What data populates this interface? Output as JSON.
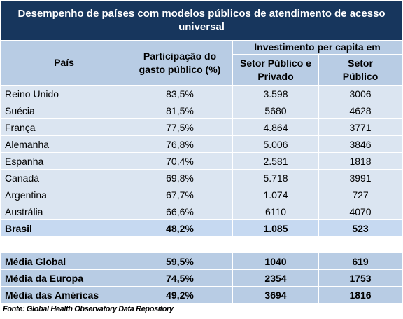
{
  "title": "Desempenho de países com modelos públicos de atendimento de acesso\nuniversal",
  "headers": {
    "pais": "País",
    "participacao": "Participação do\ngasto público (%)",
    "investimento": "Investimento per capita em",
    "setor_publico_privado": "Setor Público e\nPrivado",
    "setor_publico": "Setor\nPúblico"
  },
  "rows": [
    {
      "pais": "Reino Unido",
      "participacao": "83,5%",
      "publico_privado": "3.598",
      "publico": "3006"
    },
    {
      "pais": "Suécia",
      "participacao": "81,5%",
      "publico_privado": "5680",
      "publico": "4628"
    },
    {
      "pais": "França",
      "participacao": "77,5%",
      "publico_privado": "4.864",
      "publico": "3771"
    },
    {
      "pais": "Alemanha",
      "participacao": "76,8%",
      "publico_privado": "5.006",
      "publico": "3846"
    },
    {
      "pais": "Espanha",
      "participacao": "70,4%",
      "publico_privado": "2.581",
      "publico": "1818"
    },
    {
      "pais": "Canadá",
      "participacao": "69,8%",
      "publico_privado": "5.718",
      "publico": "3991"
    },
    {
      "pais": "Argentina",
      "participacao": "67,7%",
      "publico_privado": "1.074",
      "publico": "727"
    },
    {
      "pais": "Austrália",
      "participacao": "66,6%",
      "publico_privado": "6110",
      "publico": "4070"
    },
    {
      "pais": "Brasil",
      "participacao": "48,2%",
      "publico_privado": "1.085",
      "publico": "523"
    }
  ],
  "averages": [
    {
      "pais": "Média Global",
      "participacao": "59,5%",
      "publico_privado": "1040",
      "publico": "619"
    },
    {
      "pais": "Média da Europa",
      "participacao": "74,5%",
      "publico_privado": "2354",
      "publico": "1753"
    },
    {
      "pais": "Média das Américas",
      "participacao": "49,2%",
      "publico_privado": "3694",
      "publico": "1816"
    }
  ],
  "source": "Fonte: Global Health Observatory Data Repository"
}
